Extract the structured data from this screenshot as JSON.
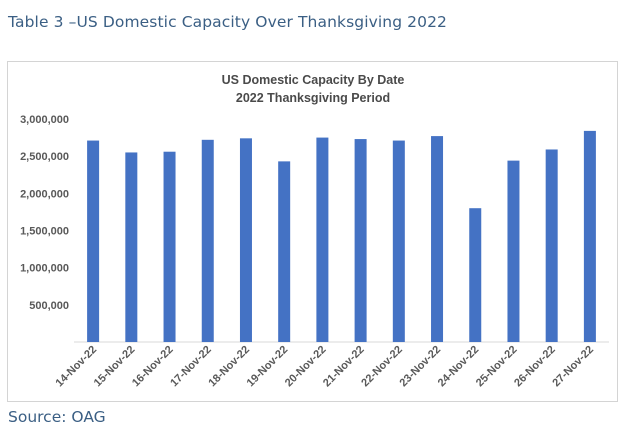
{
  "caption": "Table 3 –US Domestic Capacity Over Thanksgiving 2022",
  "source": "Source: OAG",
  "chart_data": {
    "type": "bar",
    "title": "US Domestic Capacity By Date",
    "subtitle": "2022 Thanksgiving Period",
    "xlabel": "",
    "ylabel": "",
    "categories": [
      "14-Nov-22",
      "15-Nov-22",
      "16-Nov-22",
      "17-Nov-22",
      "18-Nov-22",
      "19-Nov-22",
      "20-Nov-22",
      "21-Nov-22",
      "22-Nov-22",
      "23-Nov-22",
      "24-Nov-22",
      "25-Nov-22",
      "26-Nov-22",
      "27-Nov-22"
    ],
    "values": [
      2710000,
      2550000,
      2560000,
      2720000,
      2740000,
      2430000,
      2750000,
      2730000,
      2710000,
      2770000,
      1800000,
      2440000,
      2590000,
      2840000
    ],
    "ylim": [
      0,
      3000000
    ],
    "yticks": [
      500000,
      1000000,
      1500000,
      2000000,
      2500000,
      3000000
    ],
    "ytick_labels": [
      "500,000",
      "1,000,000",
      "1,500,000",
      "2,000,000",
      "2,500,000",
      "3,000,000"
    ],
    "grid": false,
    "legend": "none",
    "bar_color": "#4472c4"
  }
}
